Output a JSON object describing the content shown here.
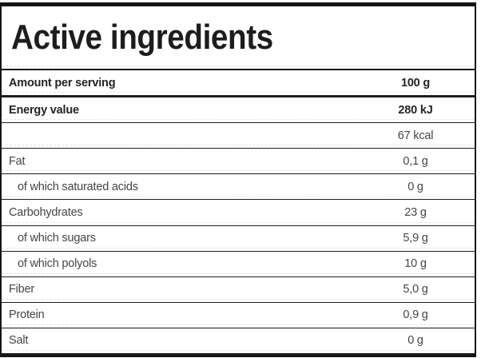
{
  "title": "Active ingredients",
  "colors": {
    "border": "#161616",
    "title_text": "#1d1d1d",
    "bold_row_text": "#242424",
    "regular_row_text": "#454545",
    "dashed_separator": "#e7e7e7",
    "background": "#ffffff"
  },
  "table": {
    "rows": [
      {
        "label": "Amount per serving",
        "value": "100 g"
      },
      {
        "label": "Energy value",
        "value": "280 kJ"
      },
      {
        "label": "",
        "value": "67 kcal"
      },
      {
        "label": "Fat",
        "value": "0,1 g"
      },
      {
        "label": "of which saturated acids",
        "value": "0 g"
      },
      {
        "label": "Carbohydrates",
        "value": "23 g"
      },
      {
        "label": "of which sugars",
        "value": "5,9 g"
      },
      {
        "label": "of which polyols",
        "value": "10 g"
      },
      {
        "label": "Fiber",
        "value": "5,0 g"
      },
      {
        "label": "Protein",
        "value": "0,9 g"
      },
      {
        "label": "Salt",
        "value": "0 g"
      }
    ]
  }
}
